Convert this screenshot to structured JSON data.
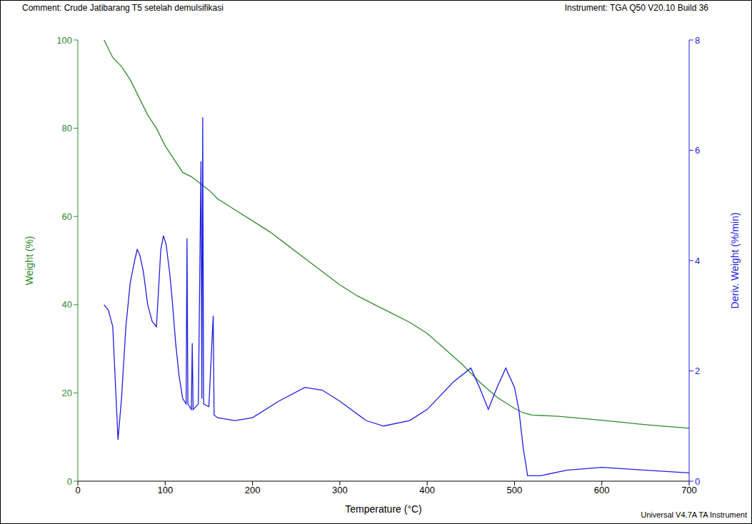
{
  "chart_data": {
    "type": "line",
    "comment": "Comment: Crude Jatibarang T5 setelah demulsifikasi",
    "instrument": "Instrument: TGA Q50 V20.10 Build 36",
    "footer": "Universal V4.7A TA Instrument",
    "xlabel": "Temperature (°C)",
    "ylabel": "Weight (%)",
    "y2label": "Deriv. Weight (%/min)",
    "xlim": [
      0,
      700
    ],
    "xticks": [
      0,
      100,
      200,
      300,
      400,
      500,
      600,
      700
    ],
    "ylim": [
      0,
      100
    ],
    "yticks": [
      0,
      20,
      40,
      60,
      80,
      100
    ],
    "y2lim": [
      0,
      8
    ],
    "y2ticks": [
      0,
      2,
      4,
      6,
      8
    ],
    "grid": false,
    "series": [
      {
        "color": "#2e8b2e",
        "axis": "y",
        "x": [
          30,
          40,
          50,
          60,
          70,
          80,
          90,
          100,
          110,
          120,
          130,
          140,
          150,
          160,
          180,
          200,
          220,
          240,
          260,
          280,
          300,
          320,
          340,
          360,
          380,
          400,
          420,
          440,
          460,
          480,
          500,
          510,
          520,
          550,
          600,
          650,
          700
        ],
        "values": [
          100,
          96,
          94,
          91,
          87,
          83,
          80,
          76,
          73,
          70,
          69,
          67.5,
          66,
          64,
          61.5,
          59,
          56.5,
          53.5,
          50.5,
          47.5,
          44.5,
          42,
          40,
          38,
          36,
          33.5,
          30,
          26.5,
          22.5,
          19,
          16.5,
          15.5,
          15,
          14.7,
          13.8,
          12.8,
          12
        ]
      },
      {
        "color": "#1f1fe0",
        "axis": "y2",
        "x": [
          30,
          35,
          40,
          46,
          50,
          55,
          60,
          65,
          68,
          71,
          75,
          80,
          85,
          90,
          95,
          98,
          101,
          105,
          108,
          112,
          116,
          120,
          124,
          125,
          126,
          130,
          131,
          132,
          138,
          141,
          142,
          143,
          144,
          150,
          155,
          156,
          160,
          180,
          200,
          230,
          260,
          280,
          300,
          330,
          350,
          380,
          400,
          430,
          450,
          460,
          470,
          480,
          490,
          500,
          505,
          510,
          515,
          530,
          560,
          600,
          650,
          700
        ],
        "values": [
          3.2,
          3.1,
          2.8,
          0.75,
          1.5,
          2.8,
          3.6,
          4.0,
          4.2,
          4.1,
          3.8,
          3.2,
          2.9,
          2.8,
          4.2,
          4.45,
          4.3,
          3.8,
          3.3,
          2.5,
          1.9,
          1.5,
          1.4,
          4.4,
          1.4,
          1.3,
          2.5,
          1.3,
          1.4,
          5.8,
          1.5,
          6.6,
          1.4,
          1.35,
          3.0,
          1.2,
          1.15,
          1.1,
          1.15,
          1.45,
          1.7,
          1.65,
          1.45,
          1.1,
          1.0,
          1.1,
          1.3,
          1.8,
          2.05,
          1.7,
          1.3,
          1.7,
          2.05,
          1.7,
          1.3,
          0.6,
          0.1,
          0.1,
          0.2,
          0.25,
          0.2,
          0.15
        ]
      }
    ]
  }
}
